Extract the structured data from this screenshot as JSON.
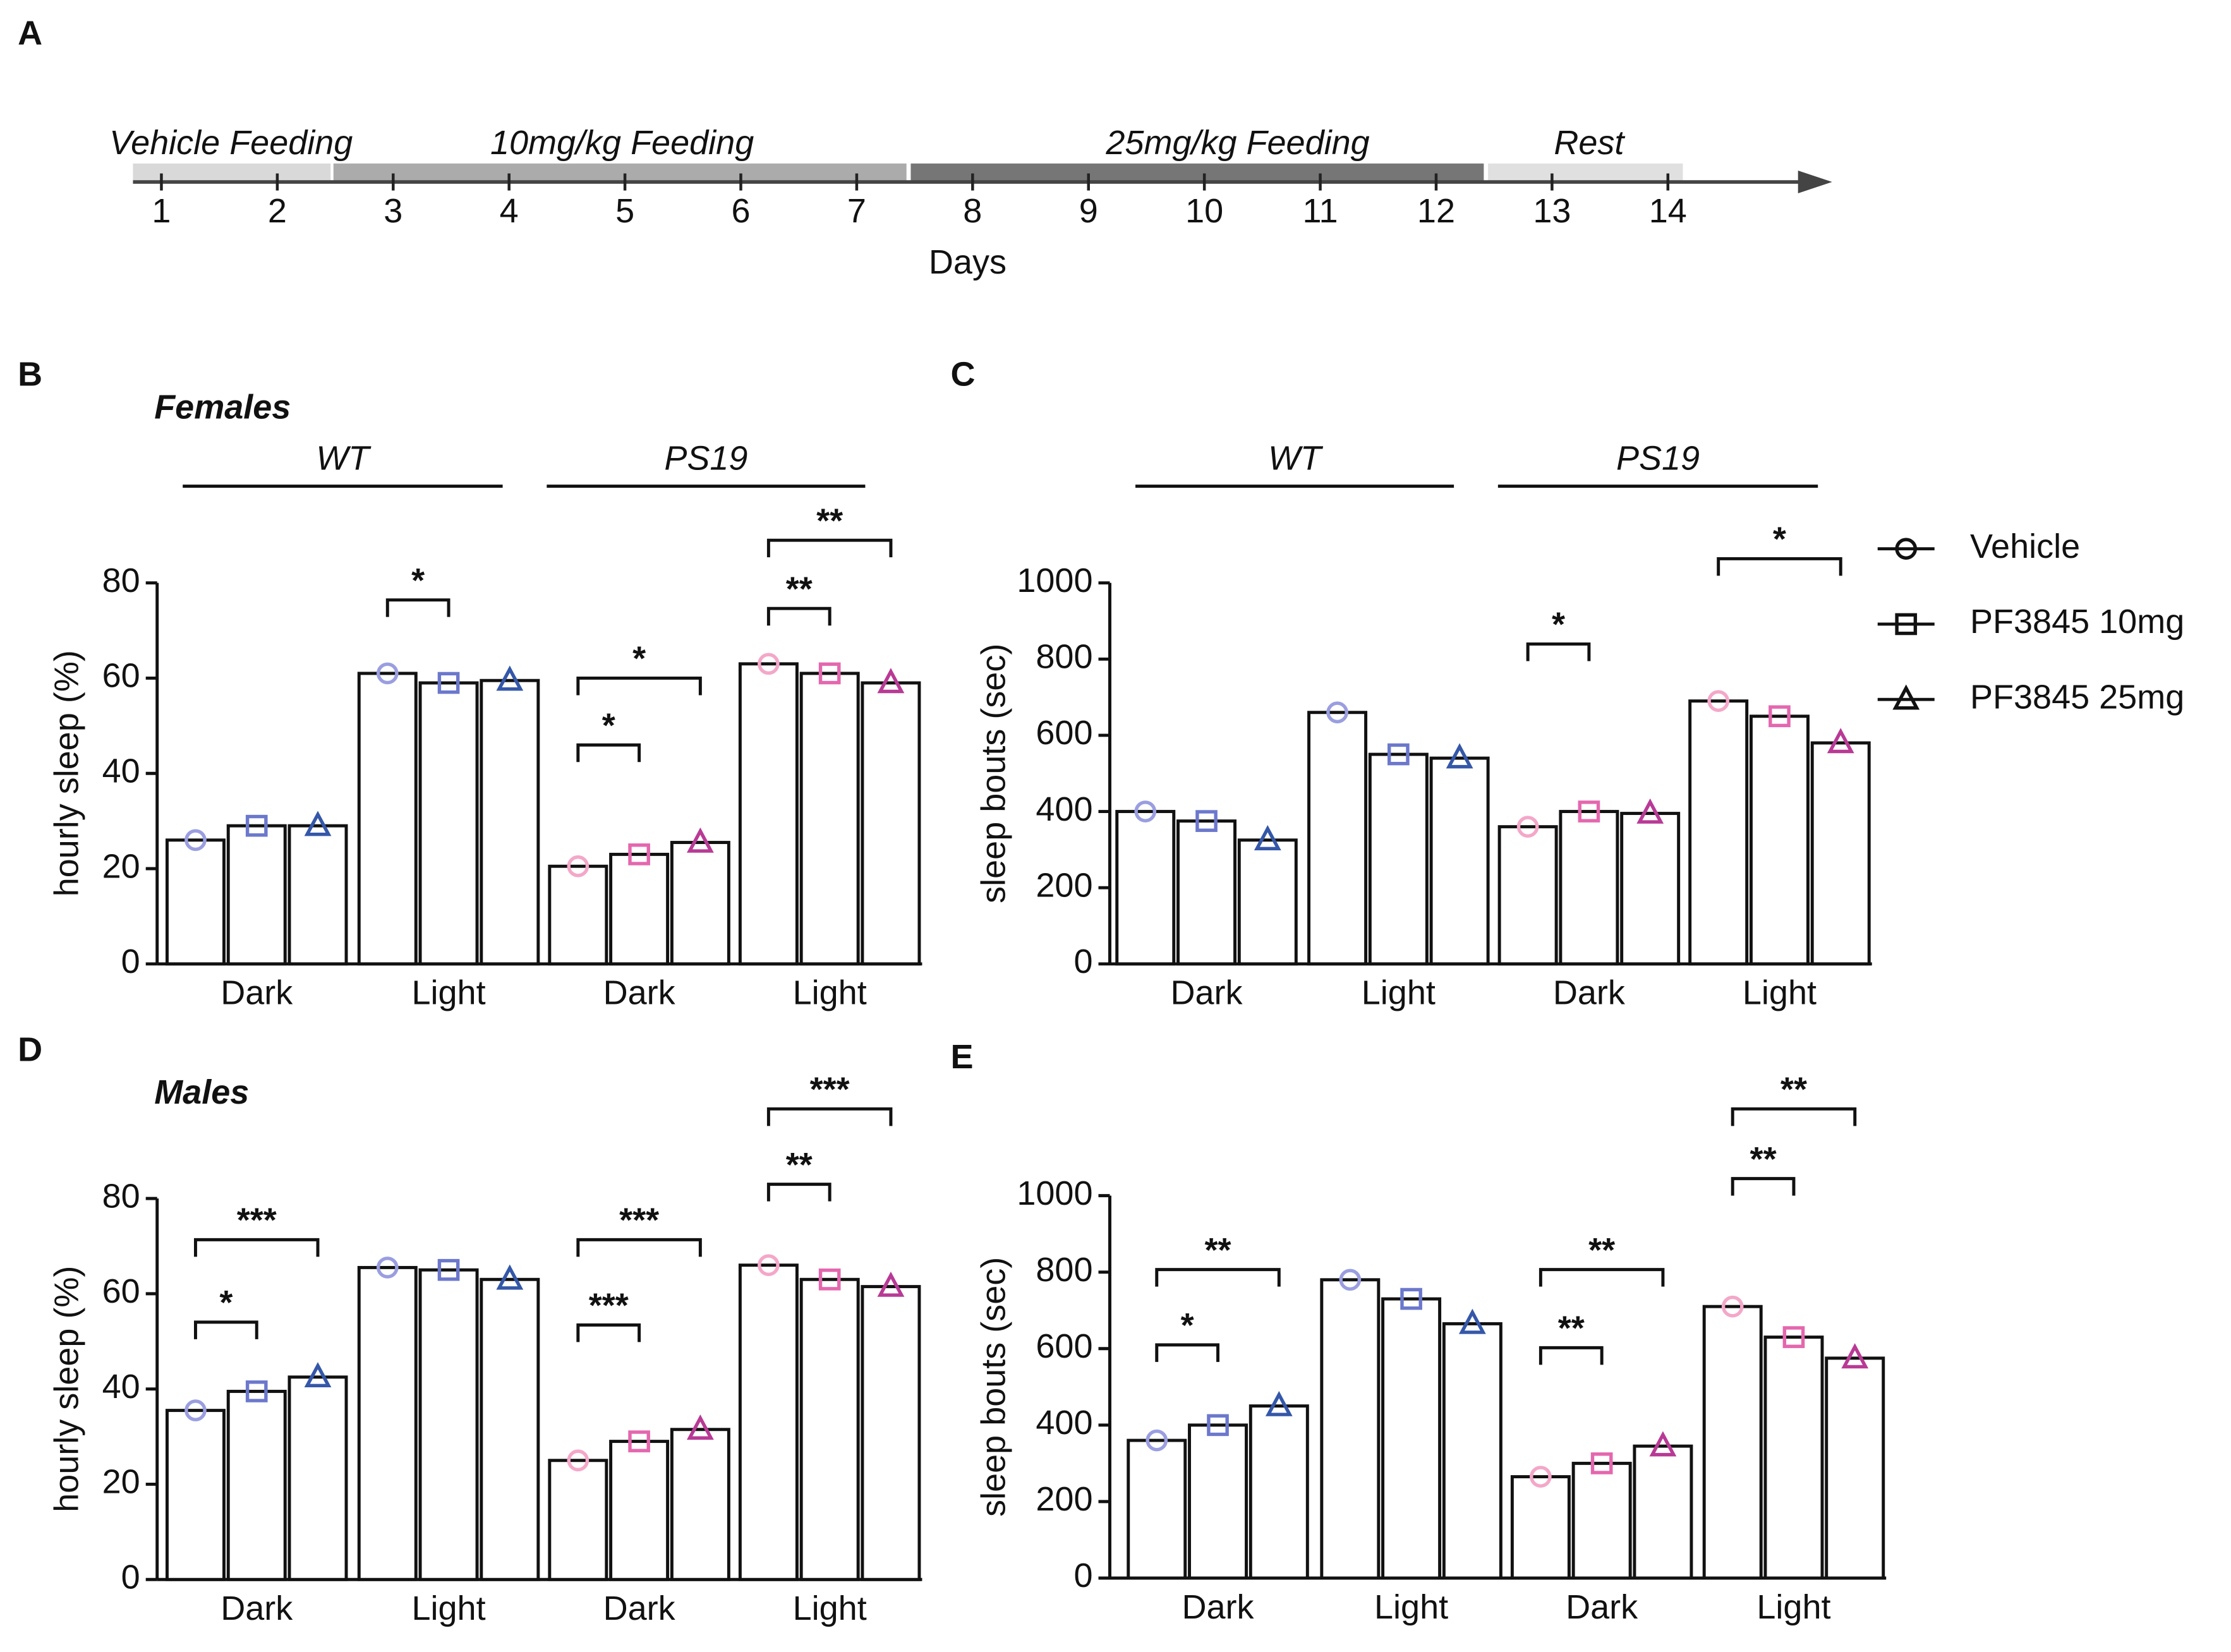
{
  "panel_labels": [
    "A",
    "B",
    "C",
    "D",
    "E"
  ],
  "timeline": {
    "phases": [
      "Vehicle Feeding",
      "10mg/kg Feeding",
      "25mg/kg Feeding",
      "Rest"
    ],
    "days": [
      1,
      2,
      3,
      4,
      5,
      6,
      7,
      8,
      9,
      10,
      11,
      12,
      13,
      14
    ],
    "xlabel": "Days"
  },
  "chart_data": [
    {
      "type": "bar",
      "subtitle": "Females",
      "groups": [
        "WT",
        "PS19"
      ],
      "ylabel": "hourly sleep (%)",
      "categories": [
        "Dark",
        "Light",
        "Dark",
        "Light"
      ],
      "series": [
        {
          "name": "Vehicle",
          "colors": [
            "#9a9ee0",
            "#f4a7c9"
          ],
          "values": [
            26,
            61,
            20.5,
            63
          ]
        },
        {
          "name": "PF3845 10mg",
          "colors": [
            "#6b78cc",
            "#e467ae"
          ],
          "values": [
            29,
            59,
            23,
            61
          ]
        },
        {
          "name": "PF3845 25mg",
          "colors": [
            "#3457a8",
            "#b83a95"
          ],
          "values": [
            29,
            59.5,
            25.5,
            59
          ]
        }
      ],
      "ylim": [
        0,
        80
      ],
      "yticks": [
        0,
        20,
        40,
        60,
        80
      ],
      "annotations": [
        "*",
        "*",
        "*",
        "**",
        "**"
      ]
    },
    {
      "type": "bar",
      "groups": [
        "WT",
        "PS19"
      ],
      "ylabel": "sleep bouts (sec)",
      "categories": [
        "Dark",
        "Light",
        "Dark",
        "Light"
      ],
      "series": [
        {
          "name": "Vehicle",
          "colors": [
            "#9a9ee0",
            "#f4a7c9"
          ],
          "values": [
            400,
            660,
            360,
            690
          ]
        },
        {
          "name": "PF3845 10mg",
          "colors": [
            "#6b78cc",
            "#e467ae"
          ],
          "values": [
            375,
            550,
            400,
            650
          ]
        },
        {
          "name": "PF3845 25mg",
          "colors": [
            "#3457a8",
            "#b83a95"
          ],
          "values": [
            325,
            540,
            395,
            580
          ]
        }
      ],
      "ylim": [
        0,
        1000
      ],
      "yticks": [
        0,
        200,
        400,
        600,
        800,
        1000
      ],
      "annotations": [
        "*",
        "*"
      ],
      "legend": "right"
    },
    {
      "type": "bar",
      "subtitle": "Males",
      "ylabel": "hourly sleep (%)",
      "categories": [
        "Dark",
        "Light",
        "Dark",
        "Light"
      ],
      "series": [
        {
          "name": "Vehicle",
          "colors": [
            "#9a9ee0",
            "#f4a7c9"
          ],
          "values": [
            35.5,
            65.5,
            25,
            66
          ]
        },
        {
          "name": "PF3845 10mg",
          "colors": [
            "#6b78cc",
            "#e467ae"
          ],
          "values": [
            39.5,
            65,
            29,
            63
          ]
        },
        {
          "name": "PF3845 25mg",
          "colors": [
            "#3457a8",
            "#b83a95"
          ],
          "values": [
            42.5,
            63,
            31.5,
            61.5
          ]
        }
      ],
      "ylim": [
        0,
        80
      ],
      "yticks": [
        0,
        20,
        40,
        60,
        80
      ],
      "annotations": [
        "*",
        "***",
        "***",
        "***",
        "**",
        "***"
      ]
    },
    {
      "type": "bar",
      "ylabel": "sleep bouts (sec)",
      "categories": [
        "Dark",
        "Light",
        "Dark",
        "Light"
      ],
      "series": [
        {
          "name": "Vehicle",
          "colors": [
            "#9a9ee0",
            "#f4a7c9"
          ],
          "values": [
            360,
            780,
            265,
            710
          ]
        },
        {
          "name": "PF3845 10mg",
          "colors": [
            "#6b78cc",
            "#e467ae"
          ],
          "values": [
            400,
            730,
            300,
            630
          ]
        },
        {
          "name": "PF3845 25mg",
          "colors": [
            "#3457a8",
            "#b83a95"
          ],
          "values": [
            450,
            665,
            345,
            575
          ]
        }
      ],
      "ylim": [
        0,
        1000
      ],
      "yticks": [
        0,
        200,
        400,
        600,
        800,
        1000
      ],
      "annotations": [
        "*",
        "**",
        "**",
        "**",
        "**",
        "**"
      ]
    }
  ]
}
